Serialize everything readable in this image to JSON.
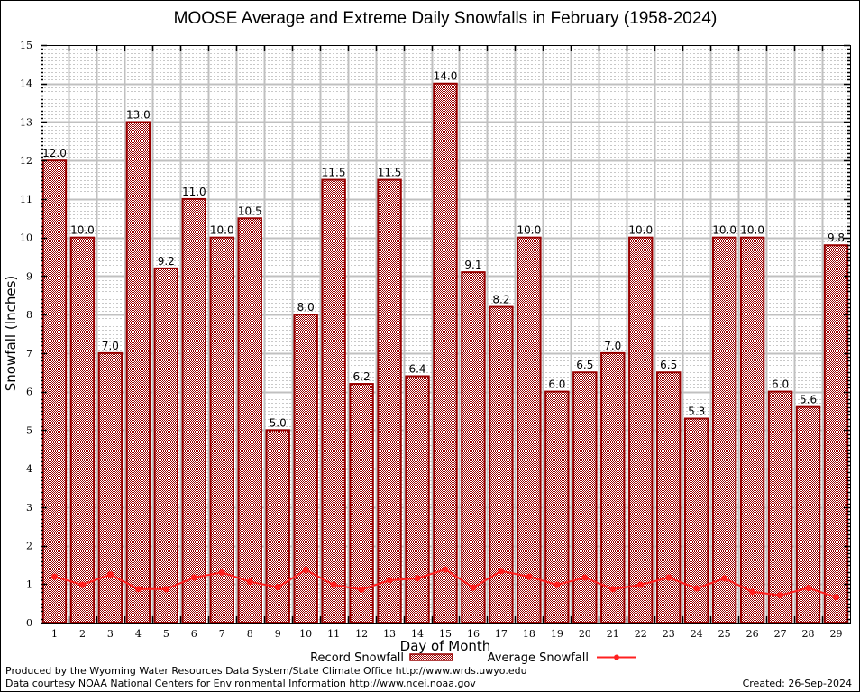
{
  "chart_data": {
    "type": "bar",
    "title": "MOOSE Average and Extreme Daily Snowfalls in February (1958-2024)",
    "xlabel": "Day of Month",
    "ylabel": "Snowfall (Inches)",
    "ylim": [
      0,
      15
    ],
    "yticks": [
      "0",
      "1",
      "2",
      "3",
      "4",
      "5",
      "6",
      "7",
      "8",
      "9",
      "10",
      "11",
      "12",
      "13",
      "14",
      "15"
    ],
    "categories": [
      "1",
      "2",
      "3",
      "4",
      "5",
      "6",
      "7",
      "8",
      "9",
      "10",
      "11",
      "12",
      "13",
      "14",
      "15",
      "16",
      "17",
      "18",
      "19",
      "20",
      "21",
      "22",
      "23",
      "24",
      "25",
      "26",
      "27",
      "28",
      "29"
    ],
    "grid": true,
    "legend_position": "bottom-center",
    "series": [
      {
        "name": "Record Snowfall",
        "type": "bar",
        "color": "#990000",
        "values": [
          12.0,
          10.0,
          7.0,
          13.0,
          9.2,
          11.0,
          10.0,
          10.5,
          5.0,
          8.0,
          11.5,
          6.2,
          11.5,
          6.4,
          14.0,
          9.1,
          8.2,
          10.0,
          6.0,
          6.5,
          7.0,
          10.0,
          6.5,
          5.3,
          10.0,
          10.0,
          6.0,
          5.6,
          9.8
        ],
        "labels": [
          "12.0",
          "10.0",
          "7.0",
          "13.0",
          "9.2",
          "11.0",
          "10.0",
          "10.5",
          "5.0",
          "8.0",
          "11.5",
          "6.2",
          "11.5",
          "6.4",
          "14.0",
          "9.1",
          "8.2",
          "10.0",
          "6.0",
          "6.5",
          "7.0",
          "10.0",
          "6.5",
          "5.3",
          "10.0",
          "10.0",
          "6.0",
          "5.6",
          "9.8"
        ]
      },
      {
        "name": "Average Snowfall",
        "type": "line",
        "color": "#ff2020",
        "values": [
          1.19,
          0.98,
          1.25,
          0.87,
          0.87,
          1.17,
          1.3,
          1.06,
          0.92,
          1.37,
          0.98,
          0.86,
          1.1,
          1.15,
          1.38,
          0.91,
          1.34,
          1.19,
          0.98,
          1.17,
          0.87,
          0.98,
          1.17,
          0.89,
          1.15,
          0.8,
          0.71,
          0.9,
          0.66
        ]
      }
    ]
  },
  "footer": {
    "produced_by": "Produced by the Wyoming Water Resources Data System/State Climate Office http://www.wrds.uwyo.edu",
    "data_courtesy": "Data courtesy NOAA National Centers for Environmental Information http://www.ncei.noaa.gov",
    "created": "Created: 26-Sep-2024"
  }
}
